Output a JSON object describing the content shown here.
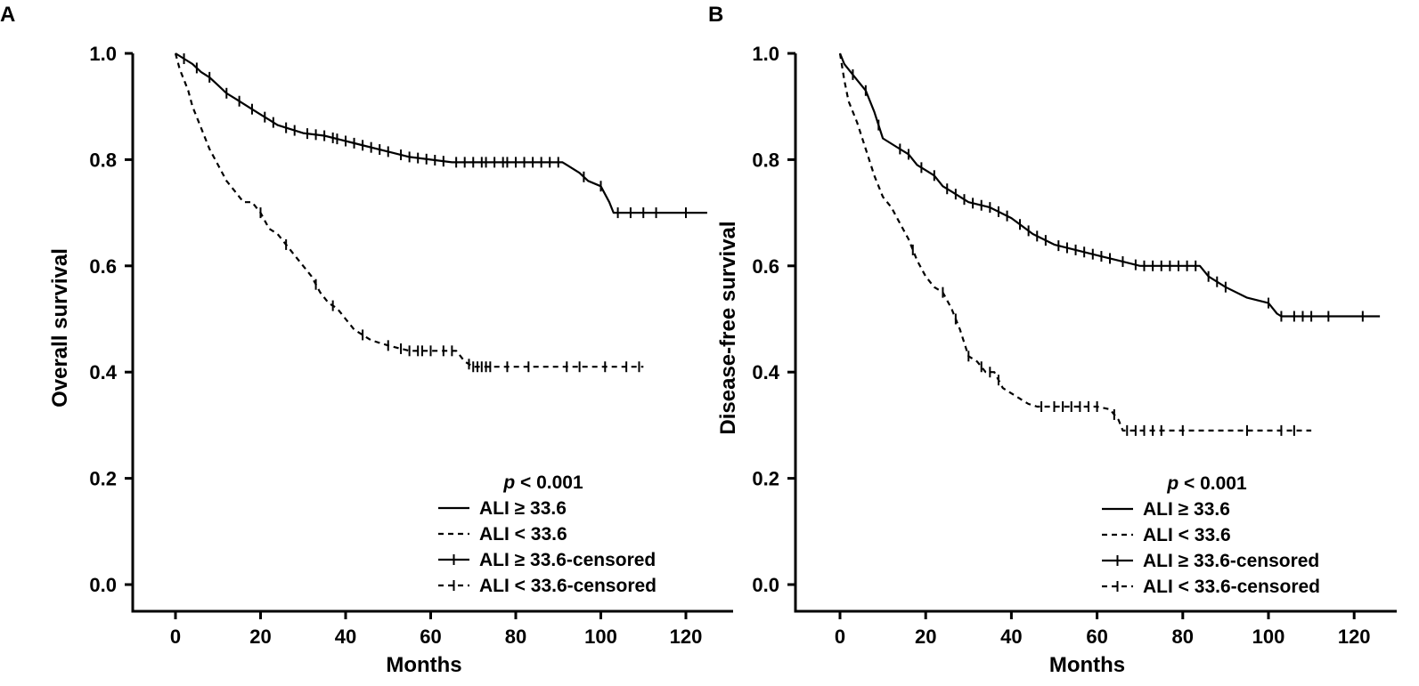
{
  "chart_data": [
    {
      "panel": "A",
      "type": "line",
      "xlabel": "Months",
      "ylabel": "Overall survival",
      "xlim": [
        -10,
        130
      ],
      "ylim": [
        -0.05,
        1.0
      ],
      "xticks": [
        0,
        20,
        40,
        60,
        80,
        100,
        120
      ],
      "xtick_labels": [
        "0",
        "20",
        "40",
        "60",
        "80",
        "100",
        "120"
      ],
      "yticks": [
        0.0,
        0.2,
        0.4,
        0.6,
        0.8,
        1.0
      ],
      "ytick_labels": [
        "0.0",
        "0.2",
        "0.4",
        "0.6",
        "0.8",
        "1.0"
      ],
      "annotation": {
        "p": "p",
        "rest": " < 0.001"
      },
      "legend_position": "bottom-right",
      "legend": [
        "ALI ≥ 33.6",
        "ALI < 33.6",
        "ALI ≥ 33.6-censored",
        "ALI < 33.6-censored"
      ],
      "series": [
        {
          "style": "solid",
          "x": [
            0,
            2,
            4,
            6,
            8,
            10,
            12,
            14,
            16,
            18,
            20,
            22,
            24,
            26,
            28,
            30,
            35,
            40,
            45,
            50,
            55,
            60,
            65,
            70,
            80,
            90,
            91,
            95,
            97,
            100,
            102,
            103,
            105,
            110,
            115,
            125
          ],
          "y": [
            1.0,
            0.99,
            0.98,
            0.965,
            0.955,
            0.94,
            0.925,
            0.915,
            0.905,
            0.895,
            0.885,
            0.875,
            0.865,
            0.86,
            0.855,
            0.85,
            0.845,
            0.835,
            0.825,
            0.815,
            0.805,
            0.8,
            0.795,
            0.795,
            0.795,
            0.795,
            0.795,
            0.775,
            0.76,
            0.75,
            0.72,
            0.7,
            0.7,
            0.7,
            0.7,
            0.7
          ],
          "censored": [
            2,
            5,
            8,
            12,
            15,
            18,
            21,
            23,
            26,
            28,
            31,
            33,
            35,
            37,
            38,
            40,
            42,
            44,
            46,
            48,
            50,
            53,
            55,
            57,
            59,
            61,
            63,
            66,
            68,
            70,
            72,
            73,
            75,
            77,
            78,
            80,
            82,
            84,
            86,
            88,
            90,
            96,
            100,
            104,
            107,
            110,
            113,
            120
          ]
        },
        {
          "style": "dashed",
          "x": [
            0,
            1,
            2,
            3,
            4,
            6,
            8,
            10,
            12,
            14,
            16,
            18,
            20,
            22,
            24,
            26,
            28,
            30,
            32,
            34,
            36,
            38,
            40,
            42,
            44,
            46,
            50,
            55,
            60,
            66,
            68,
            70,
            80,
            90,
            100,
            110
          ],
          "y": [
            1.0,
            0.97,
            0.95,
            0.93,
            0.9,
            0.86,
            0.82,
            0.79,
            0.76,
            0.74,
            0.72,
            0.72,
            0.7,
            0.67,
            0.66,
            0.64,
            0.62,
            0.6,
            0.58,
            0.55,
            0.53,
            0.52,
            0.5,
            0.48,
            0.47,
            0.46,
            0.45,
            0.44,
            0.44,
            0.44,
            0.42,
            0.41,
            0.41,
            0.41,
            0.41,
            0.41
          ],
          "censored": [
            20,
            26,
            33,
            37,
            44,
            50,
            53,
            55,
            57,
            58,
            60,
            63,
            65,
            69,
            70,
            71,
            72,
            73,
            74,
            78,
            83,
            92,
            95,
            101,
            106,
            109
          ]
        }
      ]
    },
    {
      "panel": "B",
      "type": "line",
      "xlabel": "Months",
      "ylabel": "Disease-free survival",
      "xlim": [
        -10,
        130
      ],
      "ylim": [
        -0.05,
        1.0
      ],
      "xticks": [
        0,
        20,
        40,
        60,
        80,
        100,
        120
      ],
      "xtick_labels": [
        "0",
        "20",
        "40",
        "60",
        "80",
        "100",
        "120"
      ],
      "yticks": [
        0.0,
        0.2,
        0.4,
        0.6,
        0.8,
        1.0
      ],
      "ytick_labels": [
        "0.0",
        "0.2",
        "0.4",
        "0.6",
        "0.8",
        "1.0"
      ],
      "annotation": {
        "p": "p",
        "rest": " < 0.001"
      },
      "legend_position": "bottom-right",
      "legend": [
        "ALI ≥ 33.6",
        "ALI < 33.6",
        "ALI ≥ 33.6-censored",
        "ALI < 33.6-censored"
      ],
      "series": [
        {
          "style": "solid",
          "x": [
            0,
            1,
            2,
            4,
            6,
            8,
            10,
            12,
            14,
            16,
            18,
            20,
            22,
            24,
            26,
            28,
            30,
            35,
            40,
            45,
            50,
            55,
            60,
            65,
            70,
            80,
            84,
            86,
            88,
            90,
            95,
            100,
            102,
            103,
            105,
            110,
            115,
            126
          ],
          "y": [
            1.0,
            0.98,
            0.97,
            0.95,
            0.93,
            0.89,
            0.84,
            0.83,
            0.82,
            0.81,
            0.79,
            0.78,
            0.77,
            0.75,
            0.74,
            0.73,
            0.72,
            0.71,
            0.69,
            0.66,
            0.64,
            0.63,
            0.62,
            0.61,
            0.6,
            0.6,
            0.6,
            0.58,
            0.57,
            0.56,
            0.54,
            0.53,
            0.51,
            0.505,
            0.505,
            0.505,
            0.505,
            0.505
          ],
          "censored": [
            3,
            6,
            9,
            14,
            16,
            19,
            22,
            25,
            27,
            29,
            31,
            33,
            35,
            37,
            39,
            42,
            44,
            46,
            48,
            51,
            53,
            55,
            57,
            59,
            61,
            63,
            66,
            69,
            71,
            73,
            75,
            77,
            79,
            81,
            83,
            86,
            88,
            90,
            100,
            103,
            106,
            108,
            110,
            114,
            122
          ]
        },
        {
          "style": "dashed",
          "x": [
            0,
            1,
            2,
            4,
            6,
            8,
            10,
            12,
            14,
            16,
            18,
            20,
            22,
            24,
            26,
            28,
            30,
            32,
            34,
            36,
            38,
            40,
            42,
            44,
            46,
            50,
            55,
            60,
            63,
            65,
            66,
            68,
            70,
            80,
            90,
            100,
            110
          ],
          "y": [
            1.0,
            0.95,
            0.91,
            0.87,
            0.82,
            0.77,
            0.73,
            0.71,
            0.68,
            0.65,
            0.61,
            0.58,
            0.56,
            0.55,
            0.52,
            0.48,
            0.43,
            0.42,
            0.4,
            0.4,
            0.37,
            0.36,
            0.35,
            0.34,
            0.335,
            0.335,
            0.335,
            0.335,
            0.33,
            0.31,
            0.29,
            0.29,
            0.29,
            0.29,
            0.29,
            0.29,
            0.29
          ],
          "censored": [
            17,
            24,
            27,
            30,
            33,
            35,
            37,
            47,
            50,
            52,
            54,
            56,
            58,
            60,
            64,
            67,
            69,
            71,
            73,
            75,
            80,
            95,
            103,
            106
          ]
        }
      ]
    }
  ]
}
